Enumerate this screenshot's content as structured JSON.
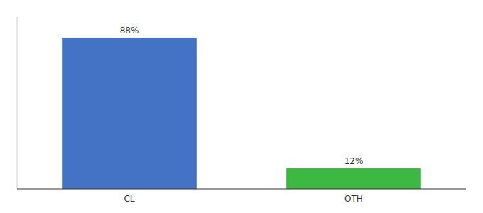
{
  "chart_data": {
    "type": "bar",
    "categories": [
      "CL",
      "OTH"
    ],
    "values": [
      88,
      12
    ],
    "value_labels": [
      "88%",
      "12%"
    ],
    "colors": [
      "#4472c4",
      "#3cb843"
    ],
    "ylim": [
      0,
      100
    ],
    "tick_labels": "x",
    "data_labels": true
  }
}
